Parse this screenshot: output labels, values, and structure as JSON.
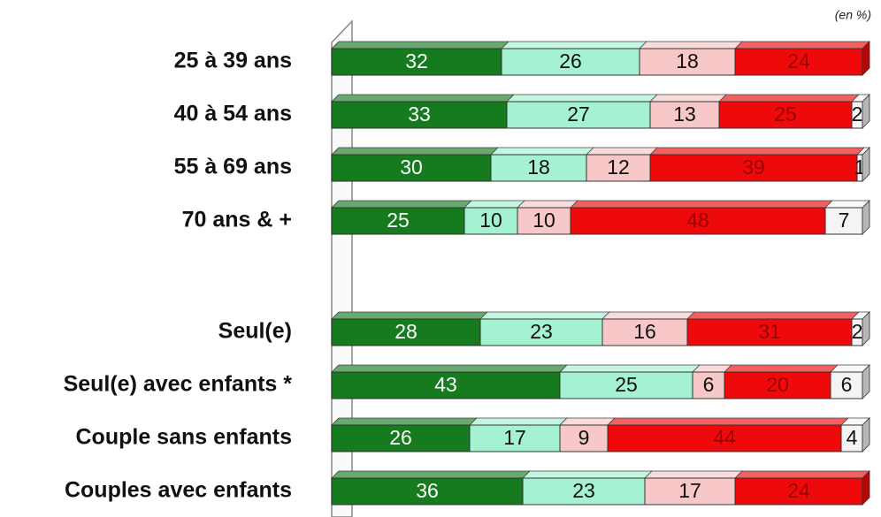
{
  "chart_data": {
    "type": "stacked-bar-horizontal",
    "annotation": "(en %)",
    "categories": [
      "25 à 39 ans",
      "40 à 54 ans",
      "55 à 69 ans",
      "70 ans & +",
      "Seul(e)",
      "Seul(e) avec enfants *",
      "Couple sans enfants",
      "Couples avec enfants"
    ],
    "xlim": [
      0,
      100
    ],
    "series": [
      {
        "color": "#167a1e",
        "values": [
          32,
          33,
          30,
          25,
          28,
          43,
          26,
          36
        ]
      },
      {
        "color": "#a4f2d2",
        "values": [
          26,
          27,
          18,
          10,
          23,
          25,
          17,
          23
        ]
      },
      {
        "color": "#f8c8c8",
        "values": [
          18,
          13,
          12,
          10,
          16,
          6,
          9,
          17
        ]
      },
      {
        "color": "#ee0a0a",
        "values": [
          24,
          25,
          39,
          48,
          31,
          20,
          44,
          24
        ]
      },
      {
        "color": "#f4f4f4",
        "values": [
          null,
          2,
          1,
          7,
          2,
          6,
          4,
          null
        ]
      }
    ]
  }
}
